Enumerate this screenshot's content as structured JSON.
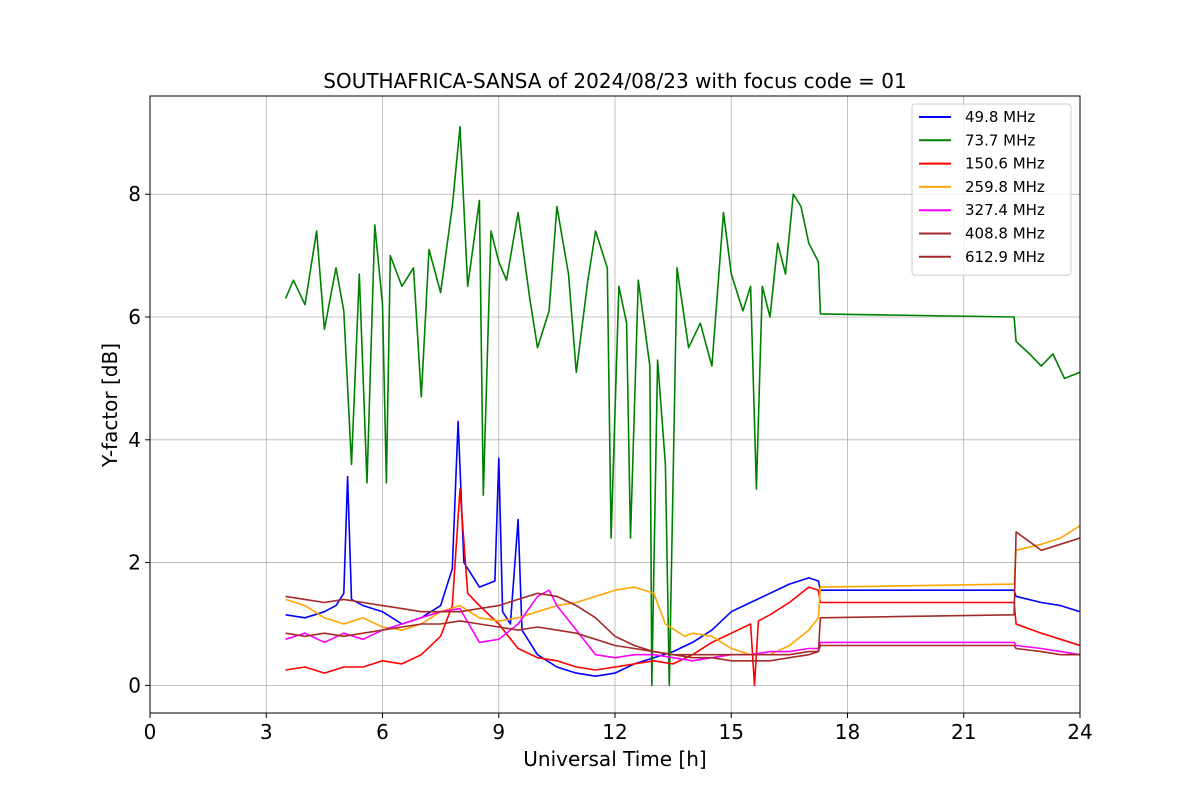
{
  "chart_data": {
    "type": "line",
    "title": "SOUTHAFRICA-SANSA of 2024/08/23 with focus code = 01",
    "xlabel": "Universal Time [h]",
    "ylabel": "Y-factor [dB]",
    "xlim": [
      0,
      24
    ],
    "ylim": [
      -0.45,
      9.6
    ],
    "xticks": [
      0,
      3,
      6,
      9,
      12,
      15,
      18,
      21,
      24
    ],
    "xtick_labels": [
      "0",
      "3",
      "6",
      "9",
      "12",
      "15",
      "18",
      "21",
      "24"
    ],
    "yticks": [
      0,
      2,
      4,
      6,
      8
    ],
    "ytick_labels": [
      "0",
      "2",
      "4",
      "6",
      "8"
    ],
    "grid": true,
    "legend_position": "top-right",
    "series": [
      {
        "name": " 49.8 MHz",
        "color": "#0000ff",
        "points": [
          [
            3.5,
            1.15
          ],
          [
            4.0,
            1.1
          ],
          [
            4.5,
            1.2
          ],
          [
            4.8,
            1.3
          ],
          [
            5.0,
            1.5
          ],
          [
            5.1,
            3.4
          ],
          [
            5.2,
            1.4
          ],
          [
            5.5,
            1.3
          ],
          [
            6.0,
            1.2
          ],
          [
            6.5,
            1.0
          ],
          [
            7.0,
            1.1
          ],
          [
            7.5,
            1.3
          ],
          [
            7.8,
            1.9
          ],
          [
            7.95,
            4.3
          ],
          [
            8.1,
            2.0
          ],
          [
            8.5,
            1.6
          ],
          [
            8.9,
            1.7
          ],
          [
            9.0,
            3.7
          ],
          [
            9.1,
            1.2
          ],
          [
            9.3,
            1.0
          ],
          [
            9.5,
            2.7
          ],
          [
            9.6,
            0.9
          ],
          [
            10.0,
            0.5
          ],
          [
            10.5,
            0.3
          ],
          [
            11.0,
            0.2
          ],
          [
            11.5,
            0.15
          ],
          [
            12.0,
            0.2
          ],
          [
            12.5,
            0.35
          ],
          [
            13.0,
            0.45
          ],
          [
            13.5,
            0.55
          ],
          [
            14.0,
            0.7
          ],
          [
            14.5,
            0.9
          ],
          [
            15.0,
            1.2
          ],
          [
            15.5,
            1.35
          ],
          [
            16.0,
            1.5
          ],
          [
            16.5,
            1.65
          ],
          [
            17.0,
            1.75
          ],
          [
            17.25,
            1.7
          ],
          [
            17.3,
            1.55
          ],
          [
            22.3,
            1.55
          ],
          [
            22.35,
            1.45
          ],
          [
            23.0,
            1.35
          ],
          [
            23.5,
            1.3
          ],
          [
            24.0,
            1.2
          ]
        ]
      },
      {
        "name": " 73.7 MHz",
        "color": "#008000",
        "points": [
          [
            3.5,
            6.3
          ],
          [
            3.7,
            6.6
          ],
          [
            4.0,
            6.2
          ],
          [
            4.3,
            7.4
          ],
          [
            4.5,
            5.8
          ],
          [
            4.8,
            6.8
          ],
          [
            5.0,
            6.1
          ],
          [
            5.2,
            3.6
          ],
          [
            5.4,
            6.7
          ],
          [
            5.6,
            3.3
          ],
          [
            5.8,
            7.5
          ],
          [
            6.0,
            6.2
          ],
          [
            6.1,
            3.3
          ],
          [
            6.2,
            7.0
          ],
          [
            6.5,
            6.5
          ],
          [
            6.8,
            6.8
          ],
          [
            7.0,
            4.7
          ],
          [
            7.2,
            7.1
          ],
          [
            7.5,
            6.4
          ],
          [
            7.8,
            7.8
          ],
          [
            8.0,
            9.1
          ],
          [
            8.2,
            6.5
          ],
          [
            8.5,
            7.9
          ],
          [
            8.6,
            3.1
          ],
          [
            8.8,
            7.4
          ],
          [
            9.0,
            6.9
          ],
          [
            9.2,
            6.6
          ],
          [
            9.5,
            7.7
          ],
          [
            9.8,
            6.3
          ],
          [
            10.0,
            5.5
          ],
          [
            10.3,
            6.1
          ],
          [
            10.5,
            7.8
          ],
          [
            10.8,
            6.7
          ],
          [
            11.0,
            5.1
          ],
          [
            11.3,
            6.6
          ],
          [
            11.5,
            7.4
          ],
          [
            11.8,
            6.8
          ],
          [
            11.9,
            2.4
          ],
          [
            12.1,
            6.5
          ],
          [
            12.3,
            5.9
          ],
          [
            12.4,
            2.4
          ],
          [
            12.6,
            6.6
          ],
          [
            12.9,
            5.2
          ],
          [
            12.95,
            0.0
          ],
          [
            13.1,
            5.3
          ],
          [
            13.3,
            3.6
          ],
          [
            13.4,
            0.0
          ],
          [
            13.6,
            6.8
          ],
          [
            13.9,
            5.5
          ],
          [
            14.2,
            5.9
          ],
          [
            14.5,
            5.2
          ],
          [
            14.8,
            7.7
          ],
          [
            15.0,
            6.7
          ],
          [
            15.3,
            6.1
          ],
          [
            15.5,
            6.5
          ],
          [
            15.65,
            3.2
          ],
          [
            15.8,
            6.5
          ],
          [
            16.0,
            6.0
          ],
          [
            16.2,
            7.2
          ],
          [
            16.4,
            6.7
          ],
          [
            16.6,
            8.0
          ],
          [
            16.8,
            7.8
          ],
          [
            17.0,
            7.2
          ],
          [
            17.25,
            6.9
          ],
          [
            17.3,
            6.05
          ],
          [
            22.3,
            6.0
          ],
          [
            22.35,
            5.6
          ],
          [
            22.7,
            5.4
          ],
          [
            23.0,
            5.2
          ],
          [
            23.3,
            5.4
          ],
          [
            23.6,
            5.0
          ],
          [
            24.0,
            5.1
          ]
        ]
      },
      {
        "name": "150.6 MHz",
        "color": "#ff0000",
        "points": [
          [
            3.5,
            0.25
          ],
          [
            4.0,
            0.3
          ],
          [
            4.5,
            0.2
          ],
          [
            5.0,
            0.3
          ],
          [
            5.5,
            0.3
          ],
          [
            6.0,
            0.4
          ],
          [
            6.5,
            0.35
          ],
          [
            7.0,
            0.5
          ],
          [
            7.5,
            0.8
          ],
          [
            7.8,
            1.3
          ],
          [
            8.0,
            3.2
          ],
          [
            8.2,
            1.5
          ],
          [
            8.5,
            1.3
          ],
          [
            9.0,
            1.0
          ],
          [
            9.5,
            0.6
          ],
          [
            10.0,
            0.45
          ],
          [
            10.5,
            0.4
          ],
          [
            11.0,
            0.3
          ],
          [
            11.5,
            0.25
          ],
          [
            12.0,
            0.3
          ],
          [
            12.5,
            0.35
          ],
          [
            13.0,
            0.4
          ],
          [
            13.5,
            0.35
          ],
          [
            14.0,
            0.5
          ],
          [
            14.5,
            0.7
          ],
          [
            15.0,
            0.85
          ],
          [
            15.5,
            1.0
          ],
          [
            15.6,
            0.0
          ],
          [
            15.7,
            1.05
          ],
          [
            16.0,
            1.15
          ],
          [
            16.5,
            1.35
          ],
          [
            17.0,
            1.6
          ],
          [
            17.25,
            1.55
          ],
          [
            17.3,
            1.35
          ],
          [
            22.3,
            1.35
          ],
          [
            22.35,
            1.0
          ],
          [
            23.0,
            0.85
          ],
          [
            23.5,
            0.75
          ],
          [
            24.0,
            0.65
          ]
        ]
      },
      {
        "name": "259.8 MHz",
        "color": "#ffa500",
        "points": [
          [
            3.5,
            1.4
          ],
          [
            4.0,
            1.3
          ],
          [
            4.5,
            1.1
          ],
          [
            5.0,
            1.0
          ],
          [
            5.5,
            1.1
          ],
          [
            6.0,
            0.95
          ],
          [
            6.5,
            0.9
          ],
          [
            7.0,
            1.0
          ],
          [
            7.5,
            1.2
          ],
          [
            8.0,
            1.3
          ],
          [
            8.5,
            1.1
          ],
          [
            9.0,
            1.05
          ],
          [
            9.5,
            1.1
          ],
          [
            10.0,
            1.2
          ],
          [
            10.5,
            1.3
          ],
          [
            11.0,
            1.35
          ],
          [
            11.5,
            1.45
          ],
          [
            12.0,
            1.55
          ],
          [
            12.5,
            1.6
          ],
          [
            13.0,
            1.5
          ],
          [
            13.3,
            1.0
          ],
          [
            13.8,
            0.8
          ],
          [
            14.0,
            0.85
          ],
          [
            14.5,
            0.8
          ],
          [
            15.0,
            0.6
          ],
          [
            15.5,
            0.5
          ],
          [
            16.0,
            0.5
          ],
          [
            16.5,
            0.65
          ],
          [
            17.0,
            0.9
          ],
          [
            17.25,
            1.1
          ],
          [
            17.3,
            1.6
          ],
          [
            22.3,
            1.65
          ],
          [
            22.35,
            2.2
          ],
          [
            23.0,
            2.3
          ],
          [
            23.5,
            2.4
          ],
          [
            24.0,
            2.6
          ]
        ]
      },
      {
        "name": "327.4 MHz",
        "color": "#ff00ff",
        "points": [
          [
            3.5,
            0.75
          ],
          [
            4.0,
            0.85
          ],
          [
            4.5,
            0.7
          ],
          [
            5.0,
            0.85
          ],
          [
            5.5,
            0.75
          ],
          [
            6.0,
            0.9
          ],
          [
            6.5,
            1.0
          ],
          [
            7.0,
            1.1
          ],
          [
            7.5,
            1.2
          ],
          [
            8.0,
            1.25
          ],
          [
            8.5,
            0.7
          ],
          [
            9.0,
            0.75
          ],
          [
            9.5,
            1.0
          ],
          [
            10.0,
            1.45
          ],
          [
            10.3,
            1.55
          ],
          [
            10.5,
            1.3
          ],
          [
            11.0,
            0.9
          ],
          [
            11.5,
            0.5
          ],
          [
            12.0,
            0.45
          ],
          [
            12.5,
            0.5
          ],
          [
            13.0,
            0.5
          ],
          [
            13.5,
            0.45
          ],
          [
            14.0,
            0.4
          ],
          [
            14.5,
            0.45
          ],
          [
            15.0,
            0.5
          ],
          [
            15.5,
            0.5
          ],
          [
            16.0,
            0.55
          ],
          [
            16.5,
            0.55
          ],
          [
            17.0,
            0.6
          ],
          [
            17.25,
            0.6
          ],
          [
            17.3,
            0.7
          ],
          [
            22.3,
            0.7
          ],
          [
            22.35,
            0.65
          ],
          [
            23.0,
            0.6
          ],
          [
            23.5,
            0.55
          ],
          [
            24.0,
            0.5
          ]
        ]
      },
      {
        "name": "408.8 MHz",
        "color": "#a52a2a",
        "points": [
          [
            3.5,
            1.45
          ],
          [
            4.0,
            1.4
          ],
          [
            4.5,
            1.35
          ],
          [
            5.0,
            1.4
          ],
          [
            5.5,
            1.35
          ],
          [
            6.0,
            1.3
          ],
          [
            6.5,
            1.25
          ],
          [
            7.0,
            1.2
          ],
          [
            7.5,
            1.2
          ],
          [
            8.0,
            1.2
          ],
          [
            8.5,
            1.25
          ],
          [
            9.0,
            1.3
          ],
          [
            9.5,
            1.4
          ],
          [
            10.0,
            1.5
          ],
          [
            10.5,
            1.45
          ],
          [
            11.0,
            1.3
          ],
          [
            11.5,
            1.1
          ],
          [
            12.0,
            0.8
          ],
          [
            12.5,
            0.65
          ],
          [
            13.0,
            0.55
          ],
          [
            13.5,
            0.5
          ],
          [
            14.0,
            0.45
          ],
          [
            14.5,
            0.45
          ],
          [
            15.0,
            0.4
          ],
          [
            15.5,
            0.4
          ],
          [
            16.0,
            0.4
          ],
          [
            16.5,
            0.45
          ],
          [
            17.0,
            0.5
          ],
          [
            17.25,
            0.55
          ],
          [
            17.3,
            1.1
          ],
          [
            22.3,
            1.15
          ],
          [
            22.35,
            2.5
          ],
          [
            23.0,
            2.2
          ],
          [
            23.5,
            2.3
          ],
          [
            24.0,
            2.4
          ]
        ]
      },
      {
        "name": "612.9 MHz",
        "color": "#a52a2a",
        "points": [
          [
            3.5,
            0.85
          ],
          [
            4.0,
            0.8
          ],
          [
            4.5,
            0.85
          ],
          [
            5.0,
            0.8
          ],
          [
            5.5,
            0.85
          ],
          [
            6.0,
            0.9
          ],
          [
            6.5,
            0.95
          ],
          [
            7.0,
            1.0
          ],
          [
            7.5,
            1.0
          ],
          [
            8.0,
            1.05
          ],
          [
            8.5,
            1.0
          ],
          [
            9.0,
            0.95
          ],
          [
            9.5,
            0.9
          ],
          [
            10.0,
            0.95
          ],
          [
            10.5,
            0.9
          ],
          [
            11.0,
            0.85
          ],
          [
            11.5,
            0.75
          ],
          [
            12.0,
            0.65
          ],
          [
            12.5,
            0.6
          ],
          [
            13.0,
            0.55
          ],
          [
            13.5,
            0.5
          ],
          [
            14.0,
            0.5
          ],
          [
            14.5,
            0.5
          ],
          [
            15.0,
            0.5
          ],
          [
            15.5,
            0.5
          ],
          [
            16.0,
            0.5
          ],
          [
            16.5,
            0.5
          ],
          [
            17.0,
            0.55
          ],
          [
            17.25,
            0.55
          ],
          [
            17.3,
            0.65
          ],
          [
            22.3,
            0.65
          ],
          [
            22.35,
            0.6
          ],
          [
            23.0,
            0.55
          ],
          [
            23.5,
            0.5
          ],
          [
            24.0,
            0.5
          ]
        ]
      }
    ]
  }
}
